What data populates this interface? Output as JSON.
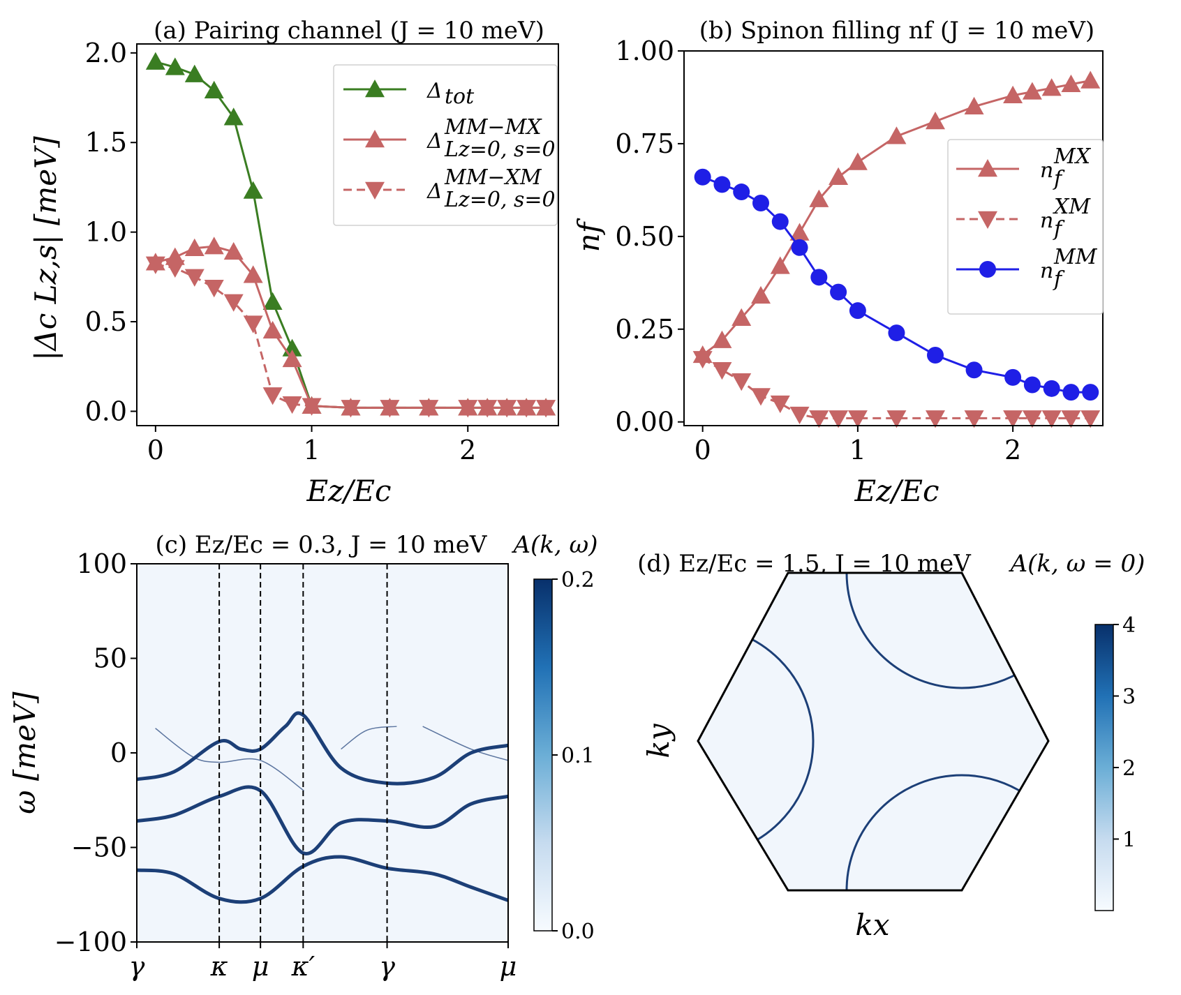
{
  "colors": {
    "green": "#3a7d22",
    "red": "#c56565",
    "blue": "#1f1fe6",
    "band": "#1c3f77",
    "map_bg": "#f1f6fc",
    "cmap_lo": "#f7fbff",
    "cmap_hi": "#08306b"
  },
  "chart_data": [
    {
      "id": "a",
      "type": "line",
      "title": "(a) Pairing channel (J = 10 meV)",
      "xlabel": "Ez/Ec",
      "ylabel": "|Δc Lz,s| [meV]",
      "xlim": [
        -0.12,
        2.58
      ],
      "ylim": [
        -0.08,
        2.05
      ],
      "xticks": [
        0,
        1,
        2
      ],
      "xtick_labels": [
        "0",
        "1",
        "2"
      ],
      "yticks": [
        0.0,
        0.5,
        1.0,
        1.5,
        2.0
      ],
      "ytick_labels": [
        "0.0",
        "0.5",
        "1.0",
        "1.5",
        "2.0"
      ],
      "legend_position": "top-right",
      "x": [
        0,
        0.125,
        0.25,
        0.375,
        0.5,
        0.625,
        0.75,
        0.875,
        1.0,
        1.25,
        1.5,
        1.75,
        2.0,
        2.125,
        2.25,
        2.375,
        2.5
      ],
      "series": [
        {
          "name": "Δtot",
          "label_main": "Δ",
          "label_sub": "tot",
          "label_sup": "",
          "color": "green",
          "marker": "triangle-up",
          "dashed": false,
          "values": [
            1.95,
            1.92,
            1.88,
            1.79,
            1.64,
            1.23,
            0.61,
            0.35,
            0.03,
            0.02,
            0.02,
            0.02,
            0.02,
            0.02,
            0.02,
            0.02,
            0.02
          ]
        },
        {
          "name": "Δ MM−MX Lz=0,s=0",
          "label_main": "Δ",
          "label_sub": "Lz=0, s=0",
          "label_sup": "MM−MX",
          "color": "red",
          "marker": "triangle-up",
          "dashed": false,
          "values": [
            0.83,
            0.86,
            0.91,
            0.92,
            0.89,
            0.76,
            0.45,
            0.29,
            0.03,
            0.02,
            0.02,
            0.02,
            0.02,
            0.02,
            0.02,
            0.02,
            0.02
          ]
        },
        {
          "name": "Δ MM−XM Lz=0,s=0",
          "label_main": "Δ",
          "label_sub": "Lz=0, s=0",
          "label_sup": "MM−XM",
          "color": "red",
          "marker": "triangle-down",
          "dashed": true,
          "values": [
            0.82,
            0.8,
            0.75,
            0.69,
            0.61,
            0.49,
            0.09,
            0.04,
            0.03,
            0.02,
            0.02,
            0.02,
            0.02,
            0.02,
            0.02,
            0.02,
            0.02
          ]
        }
      ]
    },
    {
      "id": "b",
      "type": "line",
      "title": "(b) Spinon filling nf (J = 10 meV)",
      "xlabel": "Ez/Ec",
      "ylabel": "nf",
      "xlim": [
        -0.12,
        2.58
      ],
      "ylim": [
        -0.01,
        1.0
      ],
      "xticks": [
        0,
        1,
        2
      ],
      "xtick_labels": [
        "0",
        "1",
        "2"
      ],
      "yticks": [
        0.0,
        0.25,
        0.5,
        0.75,
        1.0
      ],
      "ytick_labels": [
        "0.00",
        "0.25",
        "0.50",
        "0.75",
        "1.00"
      ],
      "legend_position": "center-right",
      "x": [
        0,
        0.125,
        0.25,
        0.375,
        0.5,
        0.625,
        0.75,
        0.875,
        1.0,
        1.25,
        1.5,
        1.75,
        2.0,
        2.125,
        2.25,
        2.375,
        2.5
      ],
      "series": [
        {
          "name": "nf MX",
          "label_main": "n",
          "label_sub": "f",
          "label_sup": "MX",
          "color": "red",
          "marker": "triangle-up",
          "dashed": false,
          "values": [
            0.18,
            0.22,
            0.28,
            0.34,
            0.42,
            0.51,
            0.6,
            0.66,
            0.7,
            0.77,
            0.81,
            0.85,
            0.88,
            0.89,
            0.9,
            0.91,
            0.92
          ]
        },
        {
          "name": "nf XM",
          "label_main": "n",
          "label_sub": "f",
          "label_sup": "XM",
          "color": "red",
          "marker": "triangle-down",
          "dashed": true,
          "values": [
            0.17,
            0.14,
            0.11,
            0.07,
            0.05,
            0.02,
            0.01,
            0.01,
            0.01,
            0.01,
            0.01,
            0.01,
            0.01,
            0.01,
            0.01,
            0.01,
            0.01
          ]
        },
        {
          "name": "nf MM",
          "label_main": "n",
          "label_sub": "f",
          "label_sup": "MM",
          "color": "blue",
          "marker": "circle",
          "dashed": false,
          "values": [
            0.66,
            0.64,
            0.62,
            0.59,
            0.54,
            0.47,
            0.39,
            0.35,
            0.3,
            0.24,
            0.18,
            0.14,
            0.12,
            0.1,
            0.09,
            0.08,
            0.08
          ]
        }
      ]
    },
    {
      "id": "c",
      "type": "heatmap",
      "title": "(c) Ez/Ec = 0.3, J = 10 meV",
      "colorbar_label": "A(k, ω)",
      "ylabel": "ω [meV]",
      "ylim": [
        -100,
        100
      ],
      "yticks": [
        -100,
        -50,
        0,
        50,
        100
      ],
      "ytick_labels": [
        "−100",
        "−50",
        "0",
        "50",
        "100"
      ],
      "kpath_labels": [
        "γ",
        "κ",
        "μ",
        "κ′",
        "γ",
        "μ"
      ],
      "kpath_positions": [
        0,
        0.222,
        0.333,
        0.448,
        0.674,
        1.0
      ],
      "colorbar_range": [
        0.0,
        0.2
      ],
      "colorbar_ticks": [
        "0.0",
        "0.1",
        "0.2"
      ],
      "bands": [
        {
          "k": [
            0,
            0.1,
            0.222,
            0.28,
            0.333,
            0.4,
            0.448,
            0.55,
            0.674,
            0.8,
            0.9,
            1.0
          ],
          "w": [
            -14,
            -10,
            6,
            2,
            2,
            14,
            20,
            -8,
            -16,
            -13,
            0,
            4
          ],
          "strength": "strong"
        },
        {
          "k": [
            0,
            0.1,
            0.222,
            0.333,
            0.448,
            0.55,
            0.674,
            0.8,
            0.9,
            1.0
          ],
          "w": [
            -36,
            -33,
            -23,
            -20,
            -53,
            -37,
            -36,
            -39,
            -27,
            -23
          ],
          "strength": "strong"
        },
        {
          "k": [
            0,
            0.1,
            0.222,
            0.333,
            0.448,
            0.55,
            0.674,
            0.8,
            0.9,
            1.0
          ],
          "w": [
            -62,
            -64,
            -77,
            -77,
            -60,
            -55,
            -61,
            -64,
            -71,
            -78
          ],
          "strength": "strong"
        },
        {
          "k": [
            0.05,
            0.15,
            0.222,
            0.333,
            0.45
          ],
          "w": [
            13,
            -2,
            -5,
            -4,
            -20
          ],
          "strength": "faint"
        },
        {
          "k": [
            0.55,
            0.62,
            0.7
          ],
          "w": [
            2,
            12,
            14
          ],
          "strength": "faint"
        },
        {
          "k": [
            0.77,
            0.9,
            1.0
          ],
          "w": [
            14,
            2,
            -4
          ],
          "strength": "faint"
        }
      ]
    },
    {
      "id": "d",
      "type": "heatmap",
      "title": "(d) Ez/Ec = 1.5, J = 10 meV",
      "colorbar_label": "A(k, ω = 0)",
      "xlabel": "kx",
      "ylabel": "ky",
      "colorbar_range": [
        0,
        4
      ],
      "colorbar_ticks": [
        "1",
        "2",
        "3",
        "4"
      ],
      "description": "Hexagonal Brillouin zone with three Fermi-surface arcs"
    }
  ]
}
